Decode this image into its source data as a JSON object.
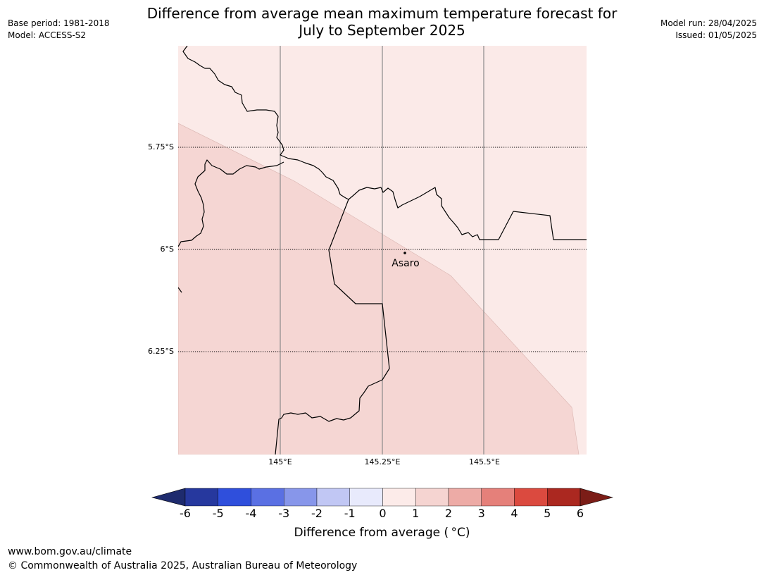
{
  "header": {
    "title_line1": "Difference from average mean maximum temperature forecast for",
    "title_line2": "July to September 2025",
    "base_period": "Base period: 1981-2018",
    "model": "Model: ACCESS-S2",
    "model_run": "Model run: 28/04/2025",
    "issued": "Issued: 01/05/2025"
  },
  "map": {
    "latitude_labels": [
      "5.75°S",
      "6°S",
      "6.25°S"
    ],
    "longitude_labels": [
      "145°E",
      "145.25°E",
      "145.5°E"
    ],
    "place": {
      "name": "Asaro"
    },
    "anomaly_classes": [
      {
        "range": "0 to 1",
        "color": "#fbeae8"
      },
      {
        "range": "1 to 2",
        "color": "#f5d6d3"
      }
    ]
  },
  "colorbar": {
    "ticks": [
      "-6",
      "-5",
      "-4",
      "-3",
      "-2",
      "-1",
      "0",
      "1",
      "2",
      "3",
      "4",
      "5",
      "6"
    ],
    "colors": [
      "#26389e",
      "#2f4fdc",
      "#5a70e3",
      "#8796ea",
      "#c1c7f4",
      "#e8eafc",
      "#fcebe9",
      "#f5d4d1",
      "#edaba6",
      "#e5807a",
      "#db4a3f",
      "#ab2820"
    ],
    "under_color": "#1e2b6e",
    "over_color": "#7b1d17",
    "label": "Difference from average ( °C)"
  },
  "footer": {
    "url": "www.bom.gov.au/climate",
    "copyright": "© Commonwealth of Australia 2025, Australian Bureau of Meteorology"
  }
}
